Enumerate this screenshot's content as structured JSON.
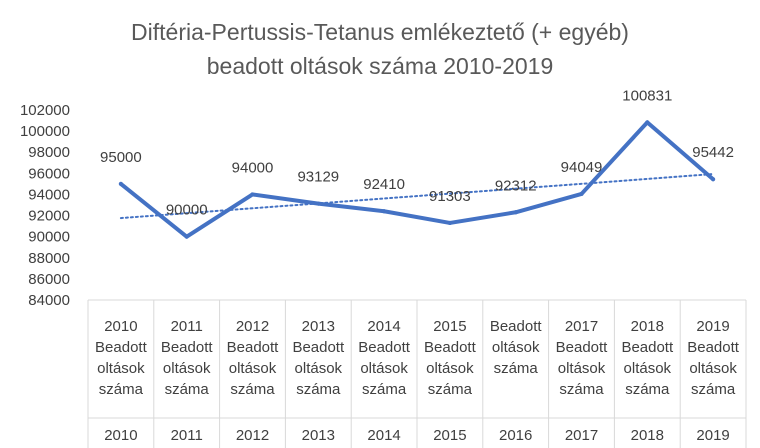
{
  "chart_data": {
    "type": "line",
    "title_lines": [
      "Diftéria-Pertussis-Tetanus emlékeztető (+ egyéb)",
      "beadott oltások száma 2010-2019"
    ],
    "ylim": [
      84000,
      102000
    ],
    "yticks": [
      "84000",
      "86000",
      "88000",
      "90000",
      "92000",
      "94000",
      "96000",
      "98000",
      "100000",
      "102000"
    ],
    "categories": [
      {
        "lines": [
          "2010",
          "Beadott",
          "oltások",
          "száma"
        ],
        "group": "2010"
      },
      {
        "lines": [
          "2011",
          "Beadott",
          "oltások",
          "száma"
        ],
        "group": "2011"
      },
      {
        "lines": [
          "2012",
          "Beadott",
          "oltások",
          "száma"
        ],
        "group": "2012"
      },
      {
        "lines": [
          "2013",
          "Beadott",
          "oltások",
          "száma"
        ],
        "group": "2013"
      },
      {
        "lines": [
          "2014",
          "Beadott",
          "oltások",
          "száma"
        ],
        "group": "2014"
      },
      {
        "lines": [
          "2015",
          "Beadott",
          "oltások",
          "száma"
        ],
        "group": "2015"
      },
      {
        "lines": [
          "Beadott",
          "oltások",
          "száma"
        ],
        "group": "2016"
      },
      {
        "lines": [
          "2017",
          "Beadott",
          "oltások",
          "száma"
        ],
        "group": "2017"
      },
      {
        "lines": [
          "2018",
          "Beadott",
          "oltások",
          "száma"
        ],
        "group": "2018"
      },
      {
        "lines": [
          "2019",
          "Beadott",
          "oltások",
          "száma"
        ],
        "group": "2019"
      }
    ],
    "series": [
      {
        "values": [
          95000,
          90000,
          94000,
          93129,
          92410,
          91303,
          92312,
          94049,
          100831,
          95442
        ],
        "labels": [
          "95000",
          "90000",
          "94000",
          "93129",
          "92410",
          "91303",
          "92312",
          "94049",
          "100831",
          "95442"
        ],
        "color": "#4472c4",
        "trendline": "linear, dotted"
      }
    ],
    "grid": false,
    "legend": "none"
  }
}
